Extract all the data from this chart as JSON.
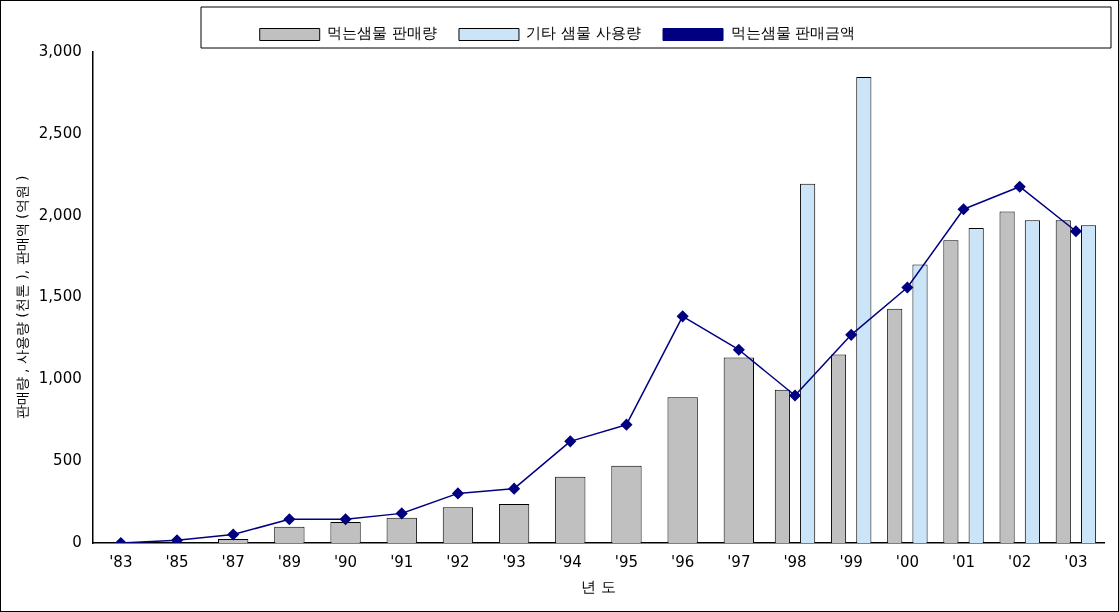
{
  "chart_data": {
    "type": "bar",
    "xlabel": "년 도",
    "ylabel": "판매량 , 사용량 (천톤 ), 판매액 (억원 )",
    "categories": [
      "'83",
      "'85",
      "'87",
      "'89",
      "'90",
      "'91",
      "'92",
      "'93",
      "'94",
      "'95",
      "'96",
      "'97",
      "'98",
      "'99",
      "'00",
      "'01",
      "'02",
      "'03"
    ],
    "series": [
      {
        "name": "먹는샘물 판매량",
        "color": "#c0c0c0",
        "values": [
          null,
          null,
          25,
          100,
          128,
          155,
          219,
          239,
          405,
          472,
          890,
          1134,
          937,
          1152,
          1432,
          1850,
          2025,
          1972
        ]
      },
      {
        "name": "기타 샘물 사용량",
        "color": "#cce4f7",
        "values": [
          null,
          null,
          null,
          null,
          null,
          null,
          null,
          null,
          null,
          null,
          null,
          null,
          2195,
          2848,
          1701,
          1925,
          1972,
          1941
        ]
      },
      {
        "name": "먹는샘물 판매금액",
        "type": "line",
        "color": "#000080",
        "marker": "diamond",
        "values": [
          0,
          17,
          52,
          145,
          145,
          181,
          303,
          332,
          621,
          723,
          1385,
          1181,
          901,
          1272,
          1561,
          2039,
          2177,
          1905
        ]
      }
    ],
    "ylim": [
      0,
      3000
    ],
    "yticks": [
      0,
      500,
      {
        "value": 1000,
        "label": "1,000"
      },
      {
        "value": 1500,
        "label": "1,500"
      },
      {
        "value": 2000,
        "label": "2,000"
      },
      {
        "value": 2500,
        "label": "2,500"
      },
      {
        "value": 3000,
        "label": "3,000"
      }
    ],
    "grid": false,
    "legend": "top"
  }
}
